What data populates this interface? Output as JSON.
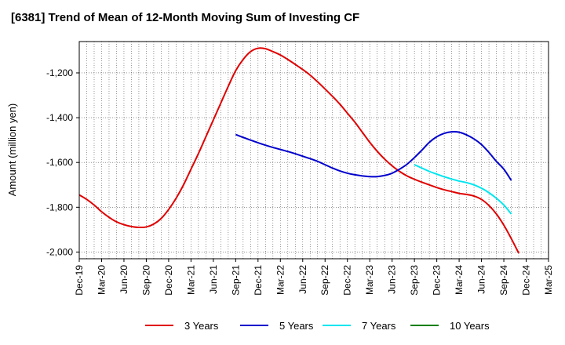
{
  "chart_data": {
    "type": "line",
    "title": "[6381]  Trend of Mean of 12-Month Moving Sum of Investing CF",
    "xlabel": "",
    "ylabel": "Amount (million yen)",
    "ylim": [
      -2030,
      -1060
    ],
    "yticks": [
      -1200,
      -1400,
      -1600,
      -1800,
      -2000
    ],
    "ytick_labels": [
      "-1,200",
      "-1,400",
      "-1,600",
      "-1,800",
      "-2,000"
    ],
    "x_start": "Dec-19",
    "x_end": "Mar-25",
    "xtick_labels": [
      "Dec-19",
      "Mar-20",
      "Jun-20",
      "Sep-20",
      "Dec-20",
      "Mar-21",
      "Jun-21",
      "Sep-21",
      "Dec-21",
      "Mar-22",
      "Jun-22",
      "Sep-22",
      "Dec-22",
      "Mar-23",
      "Jun-23",
      "Sep-23",
      "Dec-23",
      "Mar-24",
      "Jun-24",
      "Sep-24",
      "Dec-24",
      "Mar-25"
    ],
    "grid": true,
    "series": [
      {
        "name": "3 Years",
        "color": "#e00000",
        "values": [
          [
            0,
            -1745
          ],
          [
            1,
            -1765
          ],
          [
            2,
            -1790
          ],
          [
            3,
            -1820
          ],
          [
            4,
            -1845
          ],
          [
            5,
            -1865
          ],
          [
            6,
            -1878
          ],
          [
            7,
            -1886
          ],
          [
            8,
            -1890
          ],
          [
            9,
            -1888
          ],
          [
            10,
            -1875
          ],
          [
            11,
            -1850
          ],
          [
            12,
            -1810
          ],
          [
            13,
            -1760
          ],
          [
            14,
            -1700
          ],
          [
            15,
            -1630
          ],
          [
            16,
            -1560
          ],
          [
            17,
            -1485
          ],
          [
            18,
            -1410
          ],
          [
            19,
            -1335
          ],
          [
            20,
            -1260
          ],
          [
            21,
            -1190
          ],
          [
            22,
            -1140
          ],
          [
            23,
            -1105
          ],
          [
            24,
            -1090
          ],
          [
            25,
            -1092
          ],
          [
            26,
            -1105
          ],
          [
            27,
            -1120
          ],
          [
            28,
            -1140
          ],
          [
            29,
            -1162
          ],
          [
            30,
            -1185
          ],
          [
            31,
            -1210
          ],
          [
            32,
            -1240
          ],
          [
            33,
            -1272
          ],
          [
            34,
            -1305
          ],
          [
            35,
            -1340
          ],
          [
            36,
            -1380
          ],
          [
            37,
            -1420
          ],
          [
            38,
            -1465
          ],
          [
            39,
            -1510
          ],
          [
            40,
            -1550
          ],
          [
            41,
            -1585
          ],
          [
            42,
            -1615
          ],
          [
            43,
            -1640
          ],
          [
            44,
            -1660
          ],
          [
            45,
            -1675
          ],
          [
            46,
            -1688
          ],
          [
            47,
            -1700
          ],
          [
            48,
            -1712
          ],
          [
            49,
            -1722
          ],
          [
            50,
            -1730
          ],
          [
            51,
            -1738
          ],
          [
            52,
            -1743
          ],
          [
            53,
            -1750
          ],
          [
            54,
            -1765
          ],
          [
            55,
            -1792
          ],
          [
            56,
            -1830
          ],
          [
            57,
            -1880
          ],
          [
            58,
            -1940
          ],
          [
            59,
            -2005
          ]
        ]
      },
      {
        "name": "5 Years",
        "color": "#0000cc",
        "values": [
          [
            21,
            -1475
          ],
          [
            22,
            -1488
          ],
          [
            23,
            -1500
          ],
          [
            24,
            -1512
          ],
          [
            25,
            -1523
          ],
          [
            26,
            -1533
          ],
          [
            27,
            -1542
          ],
          [
            28,
            -1551
          ],
          [
            29,
            -1561
          ],
          [
            30,
            -1572
          ],
          [
            31,
            -1583
          ],
          [
            32,
            -1595
          ],
          [
            33,
            -1610
          ],
          [
            34,
            -1625
          ],
          [
            35,
            -1638
          ],
          [
            36,
            -1648
          ],
          [
            37,
            -1655
          ],
          [
            38,
            -1660
          ],
          [
            39,
            -1663
          ],
          [
            40,
            -1663
          ],
          [
            41,
            -1658
          ],
          [
            42,
            -1648
          ],
          [
            43,
            -1630
          ],
          [
            44,
            -1608
          ],
          [
            45,
            -1578
          ],
          [
            46,
            -1545
          ],
          [
            47,
            -1510
          ],
          [
            48,
            -1485
          ],
          [
            49,
            -1470
          ],
          [
            50,
            -1463
          ],
          [
            51,
            -1465
          ],
          [
            52,
            -1477
          ],
          [
            53,
            -1495
          ],
          [
            54,
            -1520
          ],
          [
            55,
            -1555
          ],
          [
            56,
            -1595
          ],
          [
            57,
            -1630
          ],
          [
            58,
            -1680
          ]
        ]
      },
      {
        "name": "7 Years",
        "color": "#00e5ee",
        "values": [
          [
            45,
            -1610
          ],
          [
            46,
            -1625
          ],
          [
            47,
            -1640
          ],
          [
            48,
            -1652
          ],
          [
            49,
            -1664
          ],
          [
            50,
            -1674
          ],
          [
            51,
            -1683
          ],
          [
            52,
            -1690
          ],
          [
            53,
            -1700
          ],
          [
            54,
            -1715
          ],
          [
            55,
            -1735
          ],
          [
            56,
            -1760
          ],
          [
            57,
            -1790
          ],
          [
            58,
            -1830
          ]
        ]
      },
      {
        "name": "10 Years",
        "color": "#008000",
        "values": []
      }
    ]
  }
}
